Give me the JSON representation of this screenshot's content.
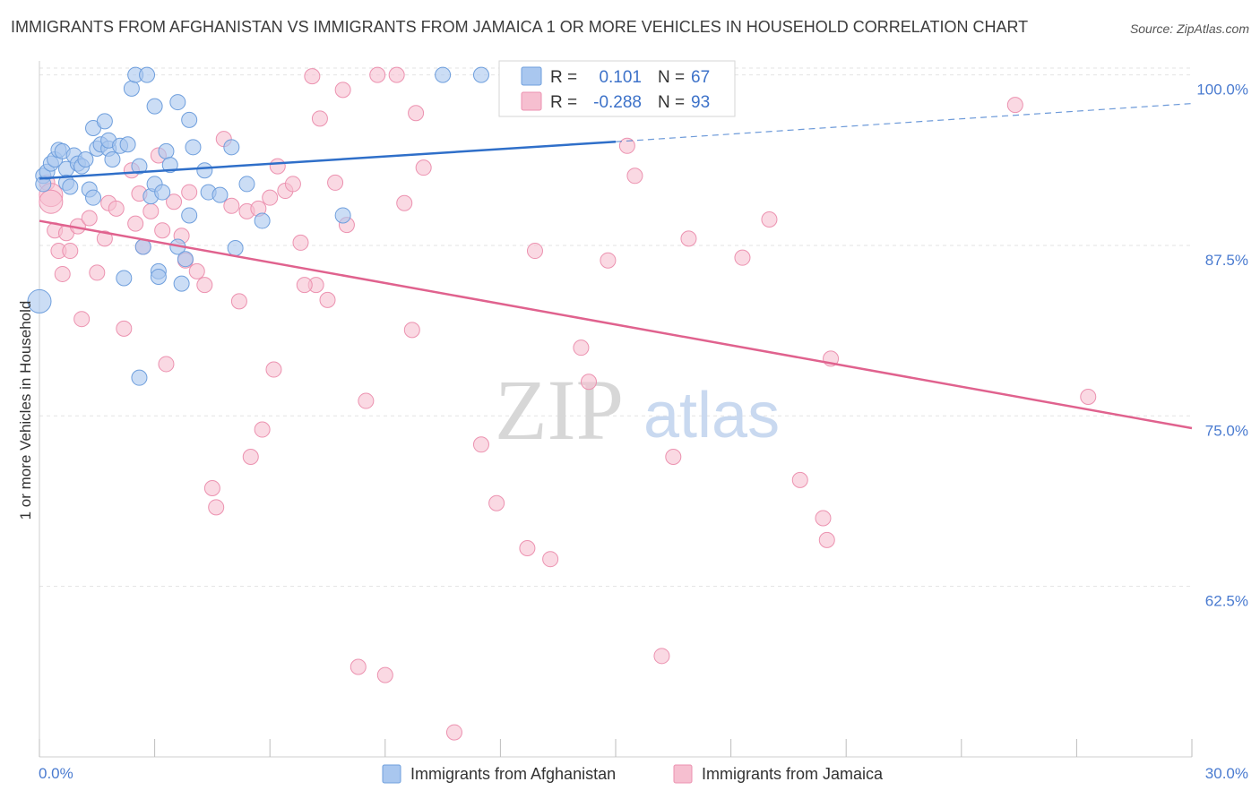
{
  "title": "IMMIGRANTS FROM AFGHANISTAN VS IMMIGRANTS FROM JAMAICA 1 OR MORE VEHICLES IN HOUSEHOLD CORRELATION CHART",
  "source": "Source: ZipAtlas.com",
  "watermark": {
    "zip": "ZIP",
    "atlas": "atlas"
  },
  "colors": {
    "afghanistan_fill": "#a9c7ef",
    "afghanistan_stroke": "#6f9fdd",
    "afghanistan_line": "#2f6fc9",
    "jamaica_fill": "#f6bfd0",
    "jamaica_stroke": "#ec92b0",
    "jamaica_line": "#e0628e",
    "tick_label": "#4a7bd0",
    "grid": "#e3e3e3"
  },
  "stats": {
    "afghanistan": {
      "r_label": "R =",
      "r_value": "0.101",
      "n_label": "N =",
      "n_value": "67"
    },
    "jamaica": {
      "r_label": "R =",
      "r_value": "-0.288",
      "n_label": "N =",
      "n_value": "93"
    }
  },
  "chart_data": {
    "type": "scatter",
    "title": "IMMIGRANTS FROM AFGHANISTAN VS IMMIGRANTS FROM JAMAICA 1 OR MORE VEHICLES IN HOUSEHOLD CORRELATION CHART",
    "xlabel": "",
    "ylabel": "1 or more Vehicles in Household",
    "xlim": [
      0,
      30
    ],
    "ylim": [
      50,
      100.5
    ],
    "x_tick_labels": [
      "0.0%",
      "30.0%"
    ],
    "y_ticks": [
      62.5,
      75.0,
      87.5,
      100.0
    ],
    "y_tick_labels": [
      "62.5%",
      "75.0%",
      "87.5%",
      "100.0%"
    ],
    "grid": true,
    "legend_position": "bottom-center",
    "series": [
      {
        "name": "Immigrants from Afghanistan",
        "trend": {
          "x0": 0,
          "y0": 92.4,
          "x1": 15,
          "y1": 95.1,
          "dashed_x1": 30,
          "dashed_y1": 97.9
        },
        "points": [
          [
            0.0,
            83.4,
            "big"
          ],
          [
            0.1,
            92.6
          ],
          [
            0.1,
            92.0
          ],
          [
            0.2,
            92.9
          ],
          [
            0.3,
            93.5
          ],
          [
            0.4,
            93.8
          ],
          [
            0.5,
            94.5
          ],
          [
            0.6,
            94.4
          ],
          [
            0.7,
            93.1
          ],
          [
            0.7,
            92.1
          ],
          [
            0.8,
            91.8
          ],
          [
            0.9,
            94.1
          ],
          [
            1.0,
            93.5
          ],
          [
            1.1,
            93.3
          ],
          [
            1.2,
            93.8
          ],
          [
            1.3,
            91.6
          ],
          [
            1.4,
            96.1
          ],
          [
            1.4,
            91.0
          ],
          [
            1.5,
            94.6
          ],
          [
            1.6,
            94.9
          ],
          [
            1.7,
            96.6
          ],
          [
            1.8,
            94.6
          ],
          [
            1.8,
            95.2
          ],
          [
            1.9,
            93.8
          ],
          [
            2.1,
            94.8
          ],
          [
            2.2,
            85.1
          ],
          [
            2.3,
            94.9
          ],
          [
            2.4,
            99.0
          ],
          [
            2.5,
            100.0
          ],
          [
            2.6,
            93.3
          ],
          [
            2.6,
            77.8
          ],
          [
            2.7,
            87.4
          ],
          [
            2.8,
            100.0
          ],
          [
            2.9,
            91.1
          ],
          [
            3.0,
            97.7
          ],
          [
            3.0,
            92.0
          ],
          [
            3.1,
            85.6
          ],
          [
            3.1,
            85.2
          ],
          [
            3.2,
            91.4
          ],
          [
            3.3,
            94.4
          ],
          [
            3.4,
            93.4
          ],
          [
            3.6,
            98.0
          ],
          [
            3.6,
            87.4
          ],
          [
            3.7,
            84.7
          ],
          [
            3.8,
            86.5
          ],
          [
            3.9,
            96.7
          ],
          [
            3.9,
            89.7
          ],
          [
            4.0,
            94.7
          ],
          [
            4.3,
            93.0
          ],
          [
            4.4,
            91.4
          ],
          [
            4.7,
            91.2
          ],
          [
            5.0,
            94.7
          ],
          [
            5.1,
            87.3
          ],
          [
            5.4,
            92.0
          ],
          [
            5.8,
            89.3
          ],
          [
            7.9,
            89.7
          ],
          [
            10.5,
            100.0
          ],
          [
            11.5,
            100.0
          ]
        ]
      },
      {
        "name": "Immigrants from Jamaica",
        "trend": {
          "x0": 0,
          "y0": 89.3,
          "x1": 30,
          "y1": 74.1
        },
        "points": [
          [
            0.2,
            92.1
          ],
          [
            0.3,
            91.2,
            "big"
          ],
          [
            0.3,
            90.7,
            "big"
          ],
          [
            0.4,
            88.6
          ],
          [
            0.5,
            87.1
          ],
          [
            0.6,
            85.4
          ],
          [
            0.7,
            88.4
          ],
          [
            0.8,
            87.1
          ],
          [
            1.0,
            88.9
          ],
          [
            1.1,
            82.1
          ],
          [
            1.3,
            89.5
          ],
          [
            1.5,
            85.5
          ],
          [
            1.7,
            88.0
          ],
          [
            1.8,
            90.6
          ],
          [
            2.0,
            90.2
          ],
          [
            2.2,
            81.4
          ],
          [
            2.4,
            93.0
          ],
          [
            2.5,
            89.1
          ],
          [
            2.6,
            91.3
          ],
          [
            2.7,
            87.4
          ],
          [
            2.9,
            90.0
          ],
          [
            3.1,
            94.1
          ],
          [
            3.2,
            88.6
          ],
          [
            3.3,
            78.8
          ],
          [
            3.5,
            90.7
          ],
          [
            3.7,
            88.2
          ],
          [
            3.8,
            86.4
          ],
          [
            3.9,
            91.4
          ],
          [
            4.1,
            85.6
          ],
          [
            4.3,
            84.6
          ],
          [
            4.5,
            69.7
          ],
          [
            4.6,
            68.3
          ],
          [
            4.8,
            95.3
          ],
          [
            5.0,
            90.4
          ],
          [
            5.2,
            83.4
          ],
          [
            5.4,
            90.0
          ],
          [
            5.5,
            72.0
          ],
          [
            5.7,
            90.2
          ],
          [
            5.8,
            74.0
          ],
          [
            6.0,
            91.0
          ],
          [
            6.1,
            78.4
          ],
          [
            6.2,
            93.3
          ],
          [
            6.4,
            91.5
          ],
          [
            6.6,
            92.0
          ],
          [
            6.8,
            87.7
          ],
          [
            7.1,
            99.9
          ],
          [
            7.2,
            84.6
          ],
          [
            7.3,
            96.8
          ],
          [
            7.5,
            83.5
          ],
          [
            7.7,
            92.1
          ],
          [
            7.9,
            98.9
          ],
          [
            8.0,
            89.0
          ],
          [
            8.3,
            56.6
          ],
          [
            8.5,
            76.1
          ],
          [
            8.8,
            100.0
          ],
          [
            9.0,
            56.0
          ],
          [
            9.3,
            100.0
          ],
          [
            9.5,
            90.6
          ],
          [
            9.7,
            81.3
          ],
          [
            9.8,
            97.2
          ],
          [
            10.0,
            93.2
          ],
          [
            10.8,
            51.8
          ],
          [
            11.5,
            72.9
          ],
          [
            11.9,
            68.6
          ],
          [
            12.7,
            65.3
          ],
          [
            12.9,
            87.1
          ],
          [
            13.3,
            64.5
          ],
          [
            14.1,
            80.0
          ],
          [
            14.3,
            77.5
          ],
          [
            14.8,
            86.4
          ],
          [
            15.3,
            94.8
          ],
          [
            16.2,
            57.4
          ],
          [
            16.5,
            72.0
          ],
          [
            16.9,
            88.0
          ],
          [
            18.3,
            86.6
          ],
          [
            19.0,
            89.4
          ],
          [
            19.8,
            70.3
          ],
          [
            20.4,
            67.5
          ],
          [
            20.5,
            65.9
          ],
          [
            20.6,
            79.2
          ],
          [
            25.4,
            97.8
          ],
          [
            27.3,
            76.4
          ],
          [
            15.5,
            92.6
          ],
          [
            6.9,
            84.6
          ]
        ]
      }
    ]
  },
  "legend": {
    "afghanistan": "Immigrants from Afghanistan",
    "jamaica": "Immigrants from Jamaica"
  }
}
